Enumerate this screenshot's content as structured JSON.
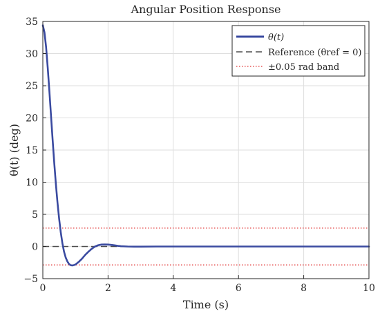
{
  "chart_data": {
    "type": "line",
    "title": "Angular Position Response",
    "xlabel": "Time (s)",
    "ylabel": "θ(t) (deg)",
    "xlim": [
      0,
      10
    ],
    "ylim": [
      -5,
      35
    ],
    "xticks": [
      0,
      2,
      4,
      6,
      8,
      10
    ],
    "yticks": [
      -5,
      0,
      5,
      10,
      15,
      20,
      25,
      30,
      35
    ],
    "grid": true,
    "legend_position": "top-right",
    "series": [
      {
        "name": "θ(t)",
        "color": "#3a4aa0",
        "style": "solid",
        "x": [
          0,
          0.05,
          0.1,
          0.15,
          0.2,
          0.25,
          0.3,
          0.35,
          0.4,
          0.45,
          0.5,
          0.55,
          0.6,
          0.65,
          0.7,
          0.75,
          0.8,
          0.85,
          0.9,
          0.95,
          1.0,
          1.1,
          1.2,
          1.3,
          1.4,
          1.5,
          1.6,
          1.7,
          1.8,
          1.9,
          2.0,
          2.1,
          2.2,
          2.3,
          2.4,
          2.6,
          2.8,
          3.0,
          3.5,
          4.0,
          5.0,
          6.0,
          7.0,
          8.0,
          9.0,
          10.0
        ],
        "y": [
          34.4,
          33.3,
          31.0,
          27.8,
          24.2,
          20.4,
          16.6,
          13.0,
          9.7,
          6.8,
          4.3,
          2.2,
          0.5,
          -0.8,
          -1.7,
          -2.3,
          -2.7,
          -2.9,
          -2.95,
          -2.9,
          -2.8,
          -2.4,
          -1.9,
          -1.3,
          -0.8,
          -0.35,
          0.0,
          0.2,
          0.3,
          0.32,
          0.3,
          0.25,
          0.18,
          0.1,
          0.05,
          0.0,
          -0.02,
          -0.02,
          0.0,
          0.0,
          0.0,
          0.0,
          0.0,
          0.0,
          0.0,
          0.0
        ]
      },
      {
        "name": "Reference (θref = 0)",
        "color": "#4d4d4d",
        "style": "dashed",
        "x": [
          0,
          10
        ],
        "y": [
          0,
          0
        ]
      },
      {
        "name": "±0.05 rad band",
        "color": "#e03030",
        "style": "dotted",
        "x": [
          0,
          10
        ],
        "y": [
          2.865,
          2.865
        ],
        "y2": [
          -2.865,
          -2.865
        ]
      }
    ]
  }
}
